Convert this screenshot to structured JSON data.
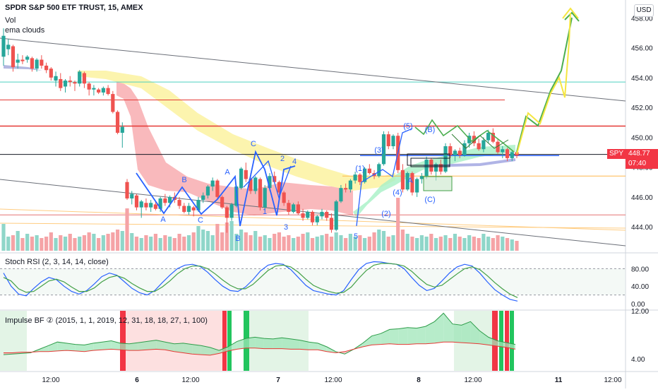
{
  "header": {
    "title": "SPDR S&P 500 ETF TRUST, 15, AMEX",
    "indicator_vol": "Vol",
    "indicator_ema": "ema clouds",
    "currency_button": "USD"
  },
  "price_tag": {
    "symbol": "SPY",
    "price": "448.77",
    "countdown": "07:40"
  },
  "stoch_label": "Stoch RSI (2, 3, 14, 14, close)",
  "impulse_label": "Impulse BF ② (2015, 1, 1, 2019, 12, 31, 18, 18, 27, 1, 100)",
  "colors": {
    "up": "#26a69a",
    "down": "#ef5350",
    "wave": "#2962ff",
    "green_arrow": "#4caf50",
    "yellow_arrow": "#f5e642",
    "red_line": "#e53935",
    "teal_line": "#4dd0c0",
    "stoch_k": "#2962ff",
    "stoch_d": "#43a047",
    "impulse_red": "#f23645",
    "impulse_green": "#22c55e"
  },
  "chart_data": [
    {
      "type": "candlestick",
      "name": "price",
      "ylim": [
        442.3,
        459.2
      ],
      "yticks": [
        444,
        446,
        448,
        450,
        452,
        454,
        456,
        458
      ],
      "x_tick_labels": [
        "12:00",
        "6",
        "12:00",
        "7",
        "12:00",
        "8",
        "12:00",
        "11",
        "12:00"
      ],
      "candles": [
        [
          455.4,
          457.3,
          454.8,
          456.8
        ],
        [
          455.9,
          456.6,
          455.5,
          456.2
        ],
        [
          456.1,
          456.2,
          454.4,
          454.7
        ],
        [
          455.0,
          455.6,
          454.6,
          455.2
        ],
        [
          455.2,
          455.5,
          454.9,
          455.1
        ],
        [
          455.2,
          455.5,
          455.0,
          455.4
        ],
        [
          455.3,
          455.4,
          454.4,
          454.6
        ],
        [
          454.6,
          455.3,
          454.4,
          455.2
        ],
        [
          455.2,
          455.5,
          454.6,
          454.8
        ],
        [
          454.8,
          455.0,
          454.3,
          454.5
        ],
        [
          454.6,
          454.7,
          453.8,
          454.0
        ],
        [
          453.8,
          454.4,
          453.4,
          454.1
        ],
        [
          453.9,
          454.3,
          453.1,
          453.3
        ],
        [
          453.4,
          453.9,
          453.0,
          453.8
        ],
        [
          453.8,
          454.1,
          453.4,
          453.7
        ],
        [
          453.7,
          453.8,
          453.1,
          453.6
        ],
        [
          453.6,
          454.5,
          453.4,
          454.4
        ],
        [
          454.3,
          454.4,
          453.3,
          453.6
        ],
        [
          453.6,
          453.7,
          452.8,
          453.2
        ],
        [
          453.2,
          453.5,
          452.8,
          453.3
        ],
        [
          453.2,
          453.3,
          452.9,
          453.0
        ],
        [
          453.0,
          453.4,
          452.8,
          453.3
        ],
        [
          453.3,
          453.5,
          452.8,
          452.9
        ],
        [
          452.9,
          453.1,
          451.6,
          451.7
        ],
        [
          451.7,
          451.8,
          450.2,
          450.3
        ],
        [
          450.3,
          451.0,
          449.3,
          450.7
        ],
        [
          447.0,
          447.2,
          445.8,
          445.9
        ],
        [
          445.9,
          446.4,
          445.5,
          446.2
        ],
        [
          446.1,
          446.2,
          445.1,
          445.3
        ],
        [
          445.3,
          445.8,
          444.6,
          445.7
        ],
        [
          445.6,
          445.9,
          445.1,
          445.3
        ],
        [
          445.3,
          445.8,
          445.0,
          445.6
        ],
        [
          445.5,
          445.7,
          445.1,
          445.2
        ],
        [
          445.2,
          446.0,
          445.0,
          445.9
        ],
        [
          445.9,
          446.2,
          445.4,
          445.6
        ],
        [
          445.6,
          446.1,
          445.3,
          446.0
        ],
        [
          446.0,
          446.3,
          445.6,
          445.8
        ],
        [
          445.8,
          446.0,
          445.2,
          445.4
        ],
        [
          445.4,
          445.6,
          444.9,
          445.0
        ],
        [
          445.0,
          445.6,
          444.8,
          445.4
        ],
        [
          445.3,
          445.4,
          444.7,
          445.1
        ],
        [
          445.1,
          446.0,
          445.0,
          445.8
        ],
        [
          445.8,
          446.3,
          445.6,
          446.1
        ],
        [
          446.1,
          446.8,
          445.9,
          446.7
        ],
        [
          446.7,
          447.3,
          446.4,
          447.1
        ],
        [
          447.1,
          447.2,
          445.9,
          446.0
        ],
        [
          446.0,
          446.1,
          445.2,
          445.3
        ],
        [
          445.3,
          445.4,
          443.6,
          444.6
        ],
        [
          444.6,
          445.6,
          444.4,
          445.5
        ],
        [
          445.4,
          446.8,
          445.3,
          446.7
        ],
        [
          446.6,
          448.0,
          446.5,
          447.9
        ],
        [
          447.8,
          448.3,
          447.0,
          447.2
        ],
        [
          447.2,
          447.6,
          446.2,
          446.4
        ],
        [
          446.4,
          447.4,
          446.2,
          447.3
        ],
        [
          447.2,
          447.3,
          445.1,
          445.3
        ],
        [
          445.3,
          446.8,
          445.1,
          446.6
        ],
        [
          446.6,
          447.6,
          446.4,
          447.4
        ],
        [
          447.4,
          447.7,
          446.9,
          447.0
        ],
        [
          447.0,
          447.1,
          446.1,
          446.3
        ],
        [
          446.3,
          446.4,
          445.4,
          445.6
        ],
        [
          445.6,
          445.8,
          444.8,
          445.0
        ],
        [
          445.0,
          445.6,
          444.9,
          445.5
        ],
        [
          445.5,
          445.7,
          444.8,
          444.9
        ],
        [
          444.9,
          445.2,
          444.4,
          444.6
        ],
        [
          444.6,
          445.1,
          444.5,
          445.0
        ],
        [
          445.0,
          445.1,
          444.1,
          444.3
        ],
        [
          444.3,
          444.8,
          444.1,
          444.7
        ],
        [
          444.7,
          445.2,
          444.5,
          445.0
        ],
        [
          445.0,
          445.1,
          444.4,
          444.6
        ],
        [
          444.6,
          444.9,
          443.6,
          443.8
        ],
        [
          443.8,
          445.8,
          443.7,
          445.7
        ],
        [
          445.7,
          446.8,
          445.6,
          446.6
        ],
        [
          446.6,
          446.9,
          446.3,
          446.5
        ],
        [
          446.5,
          447.2,
          446.3,
          447.1
        ],
        [
          447.1,
          447.7,
          446.9,
          447.5
        ],
        [
          447.5,
          447.6,
          446.8,
          447.0
        ],
        [
          447.0,
          448.0,
          446.9,
          447.9
        ],
        [
          447.9,
          448.2,
          447.5,
          447.6
        ],
        [
          447.6,
          447.8,
          447.2,
          447.4
        ],
        [
          447.4,
          448.3,
          447.3,
          448.2
        ],
        [
          448.2,
          450.4,
          448.1,
          450.2
        ],
        [
          450.2,
          450.4,
          449.2,
          449.4
        ],
        [
          449.4,
          450.2,
          449.2,
          450.1
        ],
        [
          450.1,
          450.3,
          447.6,
          447.8
        ],
        [
          447.8,
          448.2,
          446.3,
          446.5
        ],
        [
          446.5,
          447.7,
          446.4,
          447.6
        ],
        [
          447.6,
          447.7,
          446.1,
          446.3
        ],
        [
          446.3,
          447.3,
          446.0,
          447.2
        ],
        [
          447.2,
          447.6,
          446.9,
          447.4
        ],
        [
          447.4,
          448.7,
          447.2,
          448.5
        ],
        [
          448.5,
          448.6,
          447.5,
          447.7
        ],
        [
          447.7,
          448.3,
          447.1,
          448.2
        ],
        [
          448.2,
          448.5,
          447.5,
          447.7
        ],
        [
          447.7,
          449.6,
          447.6,
          449.4
        ],
        [
          449.4,
          449.6,
          448.6,
          448.8
        ],
        [
          448.8,
          449.2,
          448.4,
          449.1
        ],
        [
          449.1,
          449.3,
          448.6,
          448.8
        ],
        [
          448.8,
          449.8,
          448.7,
          449.6
        ],
        [
          449.6,
          450.3,
          449.3,
          450.1
        ],
        [
          450.1,
          450.4,
          449.4,
          449.6
        ],
        [
          449.6,
          449.9,
          449.1,
          449.2
        ],
        [
          449.2,
          450.0,
          449.0,
          449.8
        ],
        [
          449.8,
          450.5,
          449.6,
          450.3
        ],
        [
          450.3,
          450.6,
          449.6,
          449.7
        ],
        [
          449.7,
          449.9,
          448.9,
          449.0
        ],
        [
          449.0,
          449.4,
          448.6,
          449.2
        ],
        [
          449.2,
          449.3,
          448.4,
          448.6
        ],
        [
          448.6,
          449.1,
          448.4,
          449.0
        ],
        [
          449.0,
          449.1,
          448.6,
          448.77
        ]
      ],
      "horizontal_lines": [
        {
          "price": 450.75,
          "color": "#e53935"
        },
        {
          "price": 452.5,
          "color": "#e53935"
        },
        {
          "price": 453.7,
          "color": "#4dd0c0"
        },
        {
          "price": 448.85,
          "color": "#131722"
        },
        {
          "price": 444.8,
          "color": "#e57373"
        },
        {
          "price": 447.4,
          "color": "#ffb74d"
        },
        {
          "price": 448.77,
          "color": "#2962ff"
        }
      ],
      "wave_labels": [
        "A",
        "B",
        "C",
        "A",
        "B",
        "C",
        "1",
        "2",
        "3",
        "4",
        "5",
        "(1)",
        "(2)",
        "(3)",
        "(4)",
        "(5)",
        "A",
        "(B)",
        "(C)"
      ]
    },
    {
      "type": "line",
      "name": "stoch_rsi",
      "ylim": [
        0,
        100
      ],
      "yticks": [
        0.0,
        40.0,
        80.0
      ],
      "series": [
        {
          "values": [
            70,
            40,
            22,
            18,
            35,
            50,
            60,
            55,
            40,
            28,
            22,
            30,
            45,
            62,
            70,
            65,
            50,
            35,
            25,
            20,
            30,
            48,
            65,
            80,
            88,
            90,
            85,
            72,
            55,
            40,
            30,
            28,
            38,
            55,
            75,
            88,
            92,
            90,
            78,
            60,
            42,
            30,
            26,
            22,
            20,
            30,
            55,
            78,
            92,
            96,
            95,
            92,
            90,
            80,
            60,
            42,
            30,
            35,
            52,
            70,
            84,
            90,
            86,
            70,
            50,
            32,
            20,
            10,
            6
          ]
        },
        {
          "values": [
            60,
            52,
            34,
            26,
            28,
            40,
            52,
            56,
            50,
            38,
            28,
            28,
            36,
            50,
            60,
            64,
            58,
            46,
            36,
            28,
            28,
            38,
            52,
            68,
            80,
            86,
            86,
            80,
            68,
            54,
            42,
            34,
            34,
            44,
            60,
            76,
            86,
            88,
            84,
            72,
            56,
            42,
            34,
            28,
            24,
            26,
            38,
            58,
            76,
            88,
            92,
            92,
            90,
            86,
            74,
            58,
            44,
            38,
            42,
            55,
            68,
            80,
            84,
            78,
            64,
            48,
            34,
            22,
            14
          ]
        }
      ]
    },
    {
      "type": "area",
      "name": "impulse_bf",
      "ylim": [
        2.0,
        12.0
      ],
      "yticks": [
        4.0,
        12.0
      ],
      "series": [
        {
          "values": [
            4.7,
            4.8,
            4.9,
            5.0,
            5.6,
            6.2,
            6.8,
            6.6,
            6.4,
            6.3,
            6.6,
            6.8,
            7.0,
            6.6,
            6.5,
            6.7,
            6.9,
            7.1,
            6.8,
            6.5,
            6.6,
            6.4,
            6.2,
            5.9,
            5.4,
            6.0,
            6.9,
            7.4,
            7.6,
            7.4,
            7.3,
            7.5,
            7.3,
            7.1,
            6.8,
            6.6,
            6.0,
            5.2,
            4.8,
            5.6,
            6.6,
            7.8,
            8.2,
            8.9,
            9.0,
            9.2,
            9.1,
            9.4,
            10.2,
            11.6,
            9.8,
            9.6,
            10.2,
            8.7,
            7.6,
            7.0,
            6.7,
            6.4
          ]
        },
        {
          "values": [
            5.0,
            5.0,
            5.1,
            5.1,
            5.2,
            5.2,
            5.3,
            5.4,
            5.3,
            5.2,
            5.4,
            5.5,
            5.6,
            5.5,
            5.4,
            5.4,
            5.5,
            5.6,
            5.5,
            5.2,
            5.0,
            4.8,
            4.7,
            4.6,
            4.9,
            5.3,
            5.6,
            5.8,
            5.8,
            5.7,
            5.7,
            5.7,
            5.6,
            5.6,
            5.5,
            5.5,
            5.2,
            5.0,
            5.2,
            5.6,
            6.0,
            6.3,
            6.4,
            6.5,
            6.4,
            6.4,
            6.5,
            6.5,
            6.6,
            6.8,
            6.8,
            6.7,
            6.6,
            6.5,
            6.3,
            6.1,
            5.9,
            5.6
          ]
        }
      ],
      "time_tick_labels": [
        "12:00",
        "6",
        "12:00",
        "7",
        "12:00",
        "8",
        "12:00",
        "11",
        "12:00"
      ]
    }
  ]
}
